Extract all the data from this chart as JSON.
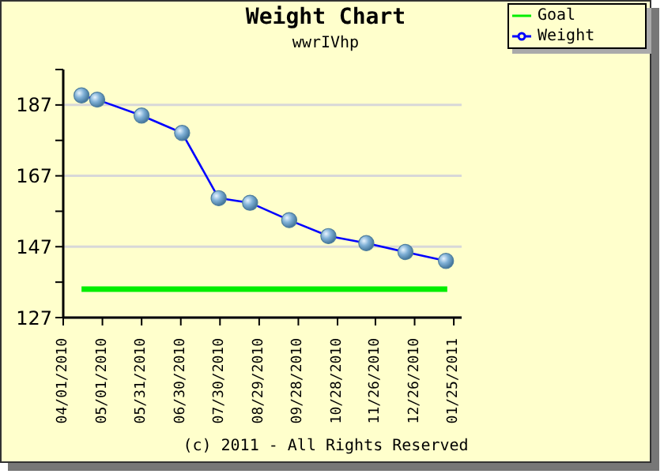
{
  "chart_data": {
    "type": "line",
    "title": "Weight Chart",
    "subtitle": "wwrIVhp",
    "series": [
      {
        "name": "Weight",
        "color": "#0000ff",
        "marker": "circle",
        "x": [
          "2010-04-15",
          "2010-04-27",
          "2010-05-31",
          "2010-07-01",
          "2010-07-29",
          "2010-08-22",
          "2010-09-21",
          "2010-10-21",
          "2010-11-19",
          "2010-12-19",
          "2011-01-19"
        ],
        "values": [
          189.7,
          188.5,
          184,
          179.1,
          160.7,
          159.4,
          154.5,
          150,
          148,
          145.5,
          143
        ]
      },
      {
        "name": "Goal",
        "color": "#00ee00",
        "marker": "none",
        "x": [
          "2010-04-15",
          "2011-01-20"
        ],
        "values": [
          135,
          135
        ]
      }
    ],
    "xlim": [
      "2010-04-01",
      "2011-01-31"
    ],
    "xticks": [
      {
        "value": "2010-04-01",
        "label": "04/01/2010"
      },
      {
        "value": "2010-05-01",
        "label": "05/01/2010"
      },
      {
        "value": "2010-05-31",
        "label": "05/31/2010"
      },
      {
        "value": "2010-06-30",
        "label": "06/30/2010"
      },
      {
        "value": "2010-07-30",
        "label": "07/30/2010"
      },
      {
        "value": "2010-08-29",
        "label": "08/29/2010"
      },
      {
        "value": "2010-09-28",
        "label": "09/28/2010"
      },
      {
        "value": "2010-10-28",
        "label": "10/28/2010"
      },
      {
        "value": "2010-11-26",
        "label": "11/26/2010"
      },
      {
        "value": "2010-12-26",
        "label": "12/26/2010"
      },
      {
        "value": "2011-01-25",
        "label": "01/25/2011"
      }
    ],
    "ylim": [
      127,
      197
    ],
    "yticks": [
      127,
      {
        "value": 137,
        "label": null
      },
      147,
      {
        "value": 157,
        "label": null
      },
      167,
      {
        "value": 177,
        "label": null
      },
      187,
      {
        "value": 197,
        "label": null
      }
    ],
    "grid": "y",
    "legend": "top right",
    "annotations": [
      "(c) 2011 - All Rights Reserved"
    ]
  }
}
